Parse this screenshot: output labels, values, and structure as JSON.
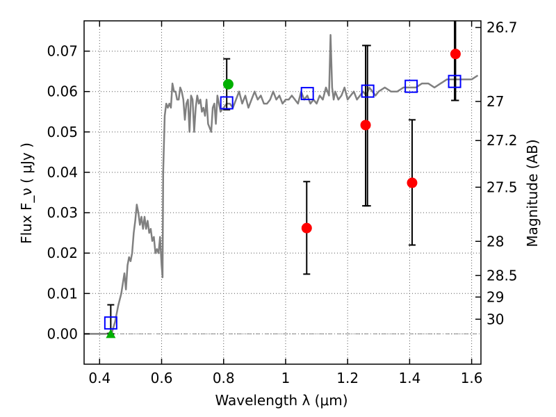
{
  "chart_data": {
    "type": "scatter",
    "xlabel": "Wavelength  λ (μm)",
    "ylabel": "Flux  F_ν  ( μJy )",
    "ylabel_right": "Magnitude (AB)",
    "xlim": [
      0.35,
      1.63
    ],
    "ylim": [
      -0.0075,
      0.0775
    ],
    "grid": true,
    "x_ticks": [
      0.4,
      0.6,
      0.8,
      1.0,
      1.2,
      1.4,
      1.6
    ],
    "x_tick_labels": [
      "0.4",
      "0.6",
      "0.8",
      "1",
      "1.2",
      "1.4",
      "1.6"
    ],
    "y_ticks": [
      0.0,
      0.01,
      0.02,
      0.03,
      0.04,
      0.05,
      0.06,
      0.07
    ],
    "y_tick_labels": [
      "0.00",
      "0.01",
      "0.02",
      "0.03",
      "0.04",
      "0.05",
      "0.06",
      "0.07"
    ],
    "right_ticks": [
      26.7,
      27,
      27.2,
      27.5,
      28,
      28.5,
      29,
      30
    ],
    "right_tick_labels": [
      "26.7",
      "27",
      "27.2",
      "27.5",
      "28",
      "28.5",
      "29",
      "30"
    ],
    "colors": {
      "sed": "#808080",
      "model_square": "#0000ff",
      "detection": "#ff0000",
      "green": "#00b000",
      "zero_line": "#888888",
      "grid": "#555555"
    },
    "sed_spectrum": {
      "x": [
        0.35,
        0.42,
        0.44,
        0.45,
        0.46,
        0.47,
        0.48,
        0.485,
        0.49,
        0.495,
        0.5,
        0.505,
        0.51,
        0.515,
        0.52,
        0.525,
        0.53,
        0.535,
        0.54,
        0.545,
        0.55,
        0.555,
        0.56,
        0.565,
        0.57,
        0.575,
        0.58,
        0.585,
        0.59,
        0.595,
        0.6,
        0.603,
        0.605,
        0.61,
        0.615,
        0.62,
        0.625,
        0.63,
        0.635,
        0.64,
        0.645,
        0.65,
        0.655,
        0.66,
        0.665,
        0.67,
        0.675,
        0.68,
        0.685,
        0.69,
        0.695,
        0.7,
        0.705,
        0.71,
        0.715,
        0.72,
        0.725,
        0.73,
        0.735,
        0.74,
        0.745,
        0.75,
        0.755,
        0.76,
        0.765,
        0.77,
        0.775,
        0.78,
        0.79,
        0.8,
        0.81,
        0.82,
        0.83,
        0.84,
        0.85,
        0.86,
        0.87,
        0.88,
        0.89,
        0.9,
        0.91,
        0.92,
        0.93,
        0.94,
        0.95,
        0.96,
        0.97,
        0.98,
        0.99,
        1.0,
        1.01,
        1.02,
        1.03,
        1.04,
        1.05,
        1.06,
        1.07,
        1.08,
        1.09,
        1.1,
        1.11,
        1.12,
        1.13,
        1.14,
        1.145,
        1.15,
        1.155,
        1.16,
        1.17,
        1.18,
        1.19,
        1.2,
        1.21,
        1.22,
        1.23,
        1.24,
        1.25,
        1.26,
        1.27,
        1.28,
        1.29,
        1.3,
        1.32,
        1.34,
        1.36,
        1.38,
        1.4,
        1.42,
        1.44,
        1.46,
        1.48,
        1.5,
        1.52,
        1.54,
        1.56,
        1.58,
        1.6,
        1.62
      ],
      "y": [
        0.0,
        0.0,
        0.0004,
        0.003,
        0.007,
        0.01,
        0.015,
        0.011,
        0.017,
        0.019,
        0.018,
        0.02,
        0.025,
        0.028,
        0.032,
        0.03,
        0.027,
        0.029,
        0.026,
        0.029,
        0.026,
        0.028,
        0.025,
        0.026,
        0.023,
        0.024,
        0.02,
        0.021,
        0.02,
        0.024,
        0.017,
        0.014,
        0.04,
        0.054,
        0.057,
        0.056,
        0.057,
        0.056,
        0.062,
        0.06,
        0.06,
        0.058,
        0.058,
        0.061,
        0.06,
        0.058,
        0.053,
        0.057,
        0.058,
        0.05,
        0.059,
        0.058,
        0.05,
        0.056,
        0.059,
        0.057,
        0.058,
        0.055,
        0.056,
        0.054,
        0.058,
        0.052,
        0.051,
        0.05,
        0.056,
        0.057,
        0.052,
        0.059,
        0.055,
        0.056,
        0.057,
        0.057,
        0.056,
        0.058,
        0.06,
        0.057,
        0.059,
        0.056,
        0.058,
        0.06,
        0.058,
        0.059,
        0.057,
        0.057,
        0.058,
        0.06,
        0.058,
        0.059,
        0.057,
        0.058,
        0.058,
        0.059,
        0.058,
        0.057,
        0.06,
        0.058,
        0.059,
        0.057,
        0.058,
        0.057,
        0.059,
        0.058,
        0.061,
        0.059,
        0.074,
        0.061,
        0.058,
        0.06,
        0.058,
        0.059,
        0.061,
        0.058,
        0.059,
        0.06,
        0.058,
        0.059,
        0.06,
        0.059,
        0.061,
        0.06,
        0.059,
        0.06,
        0.061,
        0.06,
        0.06,
        0.061,
        0.061,
        0.061,
        0.062,
        0.062,
        0.061,
        0.062,
        0.063,
        0.063,
        0.063,
        0.063,
        0.063,
        0.064
      ]
    },
    "model_squares": {
      "x": [
        0.436,
        0.81,
        1.07,
        1.265,
        1.405,
        1.545
      ],
      "y": [
        0.0027,
        0.0572,
        0.0595,
        0.0601,
        0.0613,
        0.0625
      ],
      "yerr_low": [
        0.0,
        0.0555,
        0.0,
        0.0,
        0.0,
        0.0578
      ],
      "yerr_high": [
        0.0072,
        0.0681,
        0.0,
        0.0,
        0.0,
        0.0775
      ]
    },
    "detections": {
      "x": [
        1.068,
        1.258,
        1.408,
        1.548
      ],
      "y": [
        0.0262,
        0.0517,
        0.0374,
        0.0693
      ],
      "yerr_low": [
        0.0148,
        0.0317,
        0.022,
        0.0578
      ],
      "yerr_high": [
        0.0377,
        0.0714,
        0.053,
        0.0775
      ]
    },
    "green_circle": {
      "x": 0.815,
      "y": 0.0618,
      "yerr_low": 0.0555,
      "yerr_high": 0.0681
    },
    "green_triangle": {
      "x": 0.436,
      "y": 0.0
    },
    "extra_errorbars": {
      "x": [
        1.264
      ],
      "yerr_low": [
        0.0317
      ],
      "yerr_high": [
        0.0714
      ]
    }
  }
}
